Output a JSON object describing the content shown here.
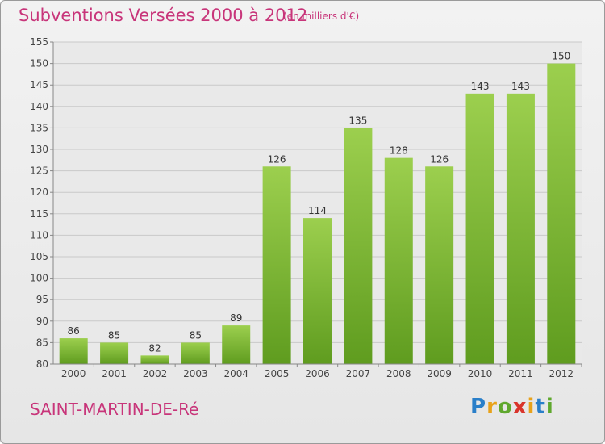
{
  "title": "Subventions Versées 2000 à 2012",
  "unit_note": "(en milliers d'€)",
  "commune": "SAINT-MARTIN-DE-Ré",
  "logo": {
    "letters": [
      "P",
      "r",
      "o",
      "x",
      "i",
      "t",
      "i"
    ],
    "colors": [
      "#2a7fc9",
      "#e8a21a",
      "#5fa82d",
      "#d9342b",
      "#e8a21a",
      "#2a7fc9",
      "#5fa82d"
    ]
  },
  "chart_data": {
    "type": "bar",
    "categories": [
      "2000",
      "2001",
      "2002",
      "2003",
      "2004",
      "2005",
      "2006",
      "2007",
      "2008",
      "2009",
      "2010",
      "2011",
      "2012"
    ],
    "values": [
      86,
      85,
      82,
      85,
      89,
      126,
      114,
      135,
      128,
      126,
      143,
      143,
      150
    ],
    "ylim": [
      80,
      155
    ],
    "yticks": [
      80,
      85,
      90,
      95,
      100,
      105,
      110,
      115,
      120,
      125,
      130,
      135,
      140,
      145,
      150,
      155
    ],
    "grid": true,
    "bar_color": "#7dbb37"
  }
}
